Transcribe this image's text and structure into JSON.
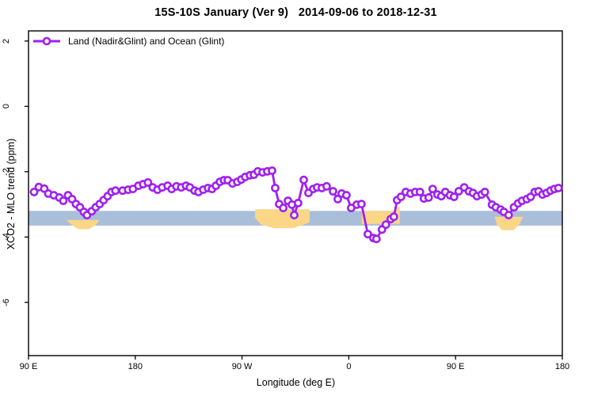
{
  "title": "15S-10S January (Ver 9)   2014-09-06 to 2018-12-31",
  "legend": {
    "label": "Land (Nadir&Glint) and Ocean (Glint)",
    "marker": "open-circle-on-line"
  },
  "colors": {
    "line": "#A020F0",
    "marker_fill": "#FFFFFF",
    "band": "#A9BED9",
    "highlight": "#FBD687",
    "frame": "#000000",
    "background": "#FFFFFF"
  },
  "chart_data": {
    "type": "line",
    "title": "15S-10S January (Ver 9)   2014-09-06 to 2018-12-31",
    "xlabel": "Longitude (deg E)",
    "ylabel": "XCO2 - MLO trend (ppm)",
    "xlim": [
      90,
      540
    ],
    "ylim": [
      -7.63,
      2.31
    ],
    "grid": false,
    "legend_position": "top-left-inside",
    "x_ticks": [
      {
        "value": 90,
        "label": "90 E"
      },
      {
        "value": 180,
        "label": "180"
      },
      {
        "value": 270,
        "label": "90 W"
      },
      {
        "value": 360,
        "label": "0"
      },
      {
        "value": 450,
        "label": "90 E"
      },
      {
        "value": 540,
        "label": "180"
      }
    ],
    "y_ticks": [
      {
        "value": 2,
        "label": "2"
      },
      {
        "value": 0,
        "label": "0"
      },
      {
        "value": -2,
        "label": "-2"
      },
      {
        "value": -4,
        "label": "-4"
      },
      {
        "value": -6,
        "label": "-6"
      }
    ],
    "band": {
      "x1": 90,
      "x2": 540,
      "y_top": -3.2,
      "y_bottom": -3.65,
      "color": "#A9BED9"
    },
    "highlight_regions": [
      {
        "polygon": [
          [
            122,
            -3.48
          ],
          [
            150,
            -3.48
          ],
          [
            146,
            -3.65
          ],
          [
            141,
            -3.76
          ],
          [
            132,
            -3.76
          ],
          [
            127,
            -3.65
          ]
        ]
      },
      {
        "polygon": [
          [
            281,
            -3.15
          ],
          [
            327,
            -3.15
          ],
          [
            327,
            -3.55
          ],
          [
            313,
            -3.73
          ],
          [
            297,
            -3.73
          ],
          [
            286,
            -3.62
          ],
          [
            281,
            -3.42
          ]
        ]
      },
      {
        "polygon": [
          [
            371,
            -3.2
          ],
          [
            399,
            -3.2
          ],
          [
            399,
            -3.08
          ],
          [
            403,
            -3.08
          ],
          [
            403,
            -3.6
          ],
          [
            371,
            -3.6
          ]
        ]
      },
      {
        "polygon": [
          [
            483,
            -3.38
          ],
          [
            507,
            -3.38
          ],
          [
            504,
            -3.6
          ],
          [
            499,
            -3.79
          ],
          [
            489,
            -3.79
          ],
          [
            485,
            -3.62
          ]
        ]
      },
      {
        "polygon": [
          [
            496,
            -3.08
          ],
          [
            500,
            -3.08
          ],
          [
            500,
            -3.22
          ],
          [
            496,
            -3.22
          ]
        ]
      }
    ],
    "series": [
      {
        "name": "Land (Nadir&Glint) and Ocean (Glint)",
        "color": "#A020F0",
        "marker": "open-circle",
        "points": [
          [
            94.7,
            -2.62
          ],
          [
            98.7,
            -2.47
          ],
          [
            103.3,
            -2.52
          ],
          [
            106.7,
            -2.67
          ],
          [
            111.3,
            -2.72
          ],
          [
            116,
            -2.79
          ],
          [
            119.3,
            -2.89
          ],
          [
            123.3,
            -2.72
          ],
          [
            126.7,
            -2.84
          ],
          [
            130,
            -2.99
          ],
          [
            133.3,
            -3.09
          ],
          [
            136.7,
            -3.23
          ],
          [
            139.3,
            -3.33
          ],
          [
            143.3,
            -3.21
          ],
          [
            146.7,
            -3.09
          ],
          [
            150,
            -2.99
          ],
          [
            153.3,
            -2.87
          ],
          [
            156.7,
            -2.75
          ],
          [
            160,
            -2.62
          ],
          [
            163.3,
            -2.58
          ],
          [
            169.3,
            -2.58
          ],
          [
            174,
            -2.55
          ],
          [
            178,
            -2.53
          ],
          [
            182.7,
            -2.43
          ],
          [
            186.7,
            -2.38
          ],
          [
            190.7,
            -2.33
          ],
          [
            194.7,
            -2.48
          ],
          [
            198.7,
            -2.55
          ],
          [
            202.7,
            -2.48
          ],
          [
            207.3,
            -2.43
          ],
          [
            210.7,
            -2.53
          ],
          [
            214.7,
            -2.45
          ],
          [
            218.7,
            -2.48
          ],
          [
            222.7,
            -2.43
          ],
          [
            226,
            -2.48
          ],
          [
            230,
            -2.58
          ],
          [
            233.3,
            -2.62
          ],
          [
            237.3,
            -2.55
          ],
          [
            241.3,
            -2.5
          ],
          [
            244.7,
            -2.53
          ],
          [
            248,
            -2.43
          ],
          [
            251.3,
            -2.31
          ],
          [
            254.7,
            -2.26
          ],
          [
            258,
            -2.26
          ],
          [
            262,
            -2.36
          ],
          [
            266,
            -2.31
          ],
          [
            269.3,
            -2.24
          ],
          [
            272.7,
            -2.16
          ],
          [
            276.7,
            -2.11
          ],
          [
            280,
            -2.09
          ],
          [
            283.3,
            -1.99
          ],
          [
            287.3,
            -2.02
          ],
          [
            291.3,
            -1.99
          ],
          [
            295.3,
            -1.97
          ],
          [
            298,
            -2.5
          ],
          [
            301.3,
            -2.99
          ],
          [
            304.7,
            -3.11
          ],
          [
            308.7,
            -2.89
          ],
          [
            312,
            -3.01
          ],
          [
            314,
            -3.33
          ],
          [
            317.3,
            -2.96
          ],
          [
            322,
            -2.25
          ],
          [
            326,
            -2.65
          ],
          [
            330,
            -2.53
          ],
          [
            333.3,
            -2.48
          ],
          [
            337.3,
            -2.5
          ],
          [
            341.3,
            -2.45
          ],
          [
            346.7,
            -2.6
          ],
          [
            350.7,
            -2.84
          ],
          [
            354,
            -2.67
          ],
          [
            358,
            -2.72
          ],
          [
            362,
            -3.11
          ],
          [
            366.7,
            -3.01
          ],
          [
            370.7,
            -2.99
          ],
          [
            376,
            -3.91
          ],
          [
            380.7,
            -4.03
          ],
          [
            383.3,
            -4.06
          ],
          [
            388,
            -3.77
          ],
          [
            391.3,
            -3.62
          ],
          [
            395.3,
            -3.45
          ],
          [
            398,
            -3.38
          ],
          [
            400.7,
            -2.87
          ],
          [
            404,
            -2.77
          ],
          [
            408,
            -2.62
          ],
          [
            412,
            -2.67
          ],
          [
            416,
            -2.62
          ],
          [
            420,
            -2.62
          ],
          [
            423.3,
            -2.82
          ],
          [
            427.3,
            -2.79
          ],
          [
            430.7,
            -2.53
          ],
          [
            434.7,
            -2.7
          ],
          [
            438,
            -2.75
          ],
          [
            441.3,
            -2.62
          ],
          [
            445.3,
            -2.72
          ],
          [
            448.7,
            -2.77
          ],
          [
            452.7,
            -2.6
          ],
          [
            457.3,
            -2.48
          ],
          [
            461.3,
            -2.6
          ],
          [
            464.7,
            -2.65
          ],
          [
            468,
            -2.75
          ],
          [
            472,
            -2.7
          ],
          [
            474.7,
            -2.62
          ],
          [
            480.7,
            -3.01
          ],
          [
            484,
            -3.09
          ],
          [
            488,
            -3.16
          ],
          [
            490.7,
            -3.23
          ],
          [
            494.7,
            -3.33
          ],
          [
            499.3,
            -3.09
          ],
          [
            502.7,
            -2.97
          ],
          [
            506,
            -2.89
          ],
          [
            510,
            -2.84
          ],
          [
            513.3,
            -2.77
          ],
          [
            516.7,
            -2.62
          ],
          [
            520,
            -2.6
          ],
          [
            523.3,
            -2.7
          ],
          [
            526.7,
            -2.65
          ],
          [
            530,
            -2.58
          ],
          [
            533.3,
            -2.53
          ],
          [
            536.7,
            -2.5
          ]
        ]
      }
    ]
  }
}
